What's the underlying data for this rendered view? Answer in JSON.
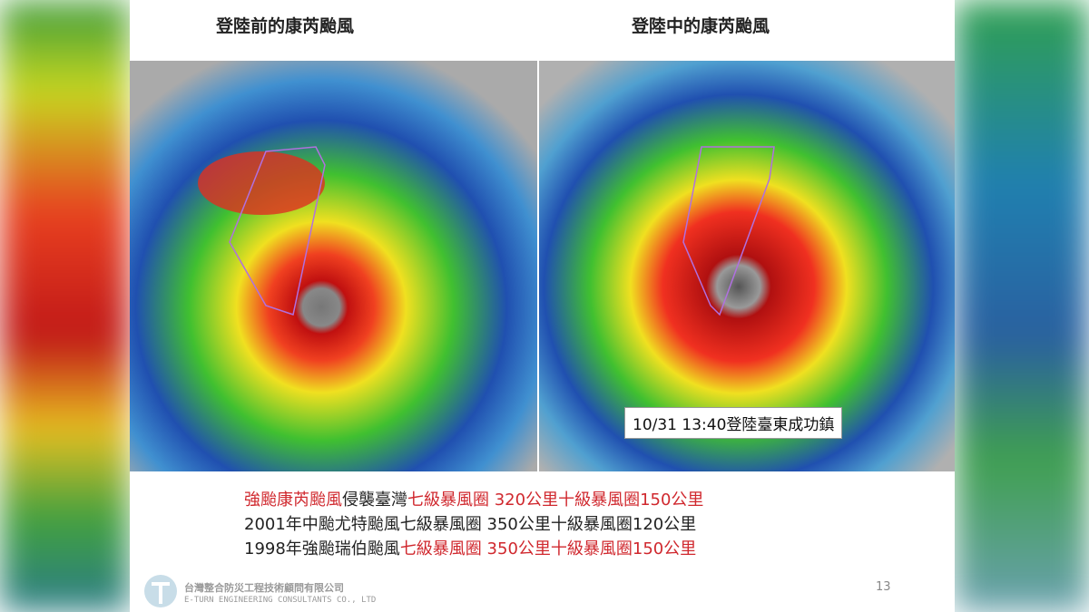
{
  "slide": {
    "titles": [
      "登陸前的康芮颱風",
      "登陸中的康芮颱風"
    ],
    "image_caption": "10/31 13:40登陸臺東成功鎮",
    "lines": [
      {
        "segments": [
          {
            "text": "強颱康芮颱風",
            "color": "#d0282e"
          },
          {
            "text": "侵襲臺灣",
            "color": "#222222"
          },
          {
            "text": "七級暴風圈 320公里十級暴風圈150公里",
            "color": "#d0282e"
          }
        ]
      },
      {
        "segments": [
          {
            "text": "2001年中颱尤特颱風七級暴風圈 350公里十級暴風圈120公里",
            "color": "#222222"
          }
        ]
      },
      {
        "segments": [
          {
            "text": "1998年強颱瑞伯颱風",
            "color": "#222222"
          },
          {
            "text": "七級暴風圈 350公里十級暴風圈150公里",
            "color": "#d0282e"
          }
        ]
      }
    ],
    "footer": {
      "company": "台灣整合防災工程技術顧問有限公司",
      "company_en": "E-TURN ENGINEERING CONSULTANTS CO., LTD",
      "page_number": "13"
    }
  }
}
